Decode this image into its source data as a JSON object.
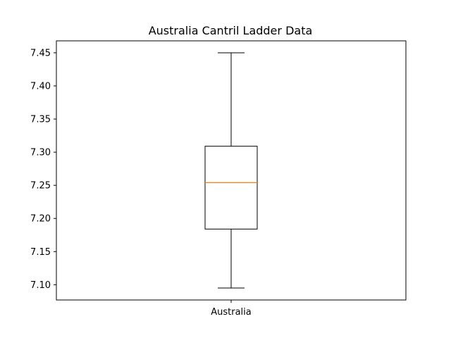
{
  "chart_data": {
    "type": "box",
    "title": "Australia Cantril Ladder Data",
    "xlabel": "",
    "ylabel": "",
    "categories": [
      "Australia"
    ],
    "boxes": [
      {
        "category": "Australia",
        "whisker_low": 7.095,
        "q1": 7.184,
        "median": 7.254,
        "q3": 7.309,
        "whisker_high": 7.45
      }
    ],
    "ylim": [
      7.077,
      7.468
    ],
    "yticks": [
      7.1,
      7.15,
      7.2,
      7.25,
      7.3,
      7.35,
      7.4,
      7.45
    ],
    "grid": false,
    "colors": {
      "box": "#000000",
      "median": "#ff7f0e",
      "axes": "#000000"
    }
  }
}
